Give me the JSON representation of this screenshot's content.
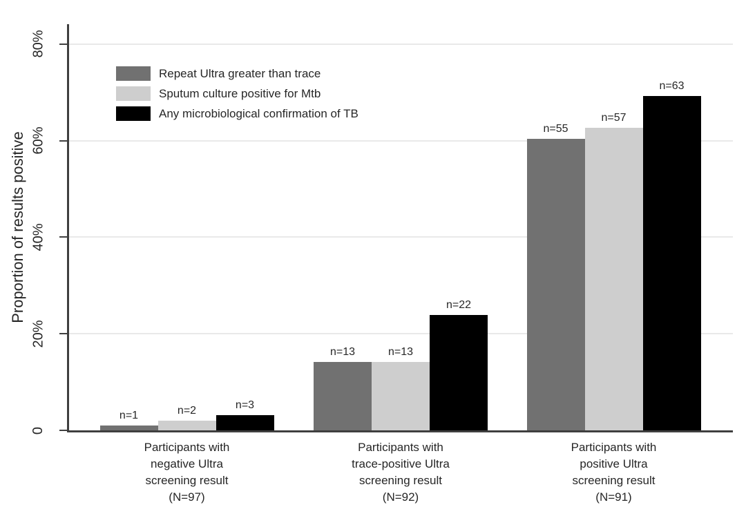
{
  "chart_data": {
    "type": "bar",
    "title": "",
    "xlabel": "",
    "ylabel": "Proportion of results positive",
    "grid": "horizontal",
    "legend_position": "top-left-inside",
    "ylim_pct": [
      0,
      84
    ],
    "y_axis": {
      "ticks": [
        {
          "value": 0,
          "label": "0"
        },
        {
          "value": 20,
          "label": "20%"
        },
        {
          "value": 40,
          "label": "40%"
        },
        {
          "value": 60,
          "label": "60%"
        },
        {
          "value": 80,
          "label": "80%"
        }
      ]
    },
    "categories": [
      {
        "label_lines": [
          "Participants with",
          "negative Ultra",
          "screening result",
          "(N=97)"
        ],
        "total_N": 97
      },
      {
        "label_lines": [
          "Participants with",
          "trace-positive Ultra",
          "screening result",
          "(N=92)"
        ],
        "total_N": 92
      },
      {
        "label_lines": [
          "Participants with",
          "positive Ultra",
          "screening result",
          "(N=91)"
        ],
        "total_N": 91
      }
    ],
    "series": [
      {
        "name": "Repeat Ultra greater than trace",
        "color": "#717171",
        "counts": [
          1,
          13,
          55
        ],
        "values_pct": [
          1.03,
          14.13,
          60.44
        ],
        "bar_labels": [
          "n=1",
          "n=13",
          "n=55"
        ]
      },
      {
        "name": "Sputum culture positive for Mtb",
        "color": "#cecece",
        "counts": [
          2,
          13,
          57
        ],
        "values_pct": [
          2.06,
          14.13,
          62.64
        ],
        "bar_labels": [
          "n=2",
          "n=13",
          "n=57"
        ]
      },
      {
        "name": "Any microbiological confirmation of TB",
        "color": "#000000",
        "counts": [
          3,
          22,
          63
        ],
        "values_pct": [
          3.09,
          23.91,
          69.23
        ],
        "bar_labels": [
          "n=3",
          "n=22",
          "n=63"
        ]
      }
    ]
  }
}
